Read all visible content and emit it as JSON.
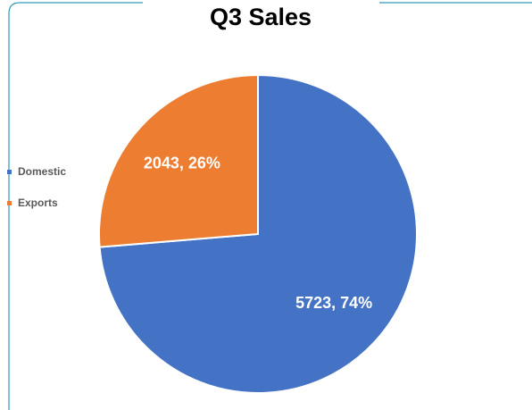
{
  "chart_data": {
    "type": "pie",
    "title": "Q3 Sales",
    "categories": [
      "Domestic",
      "Exports"
    ],
    "values": [
      5723,
      2043
    ],
    "value_labels": [
      "5723, 74%",
      "2043, 26%"
    ],
    "colors": [
      "#4472c4",
      "#ed7d31"
    ],
    "legend": "left"
  }
}
